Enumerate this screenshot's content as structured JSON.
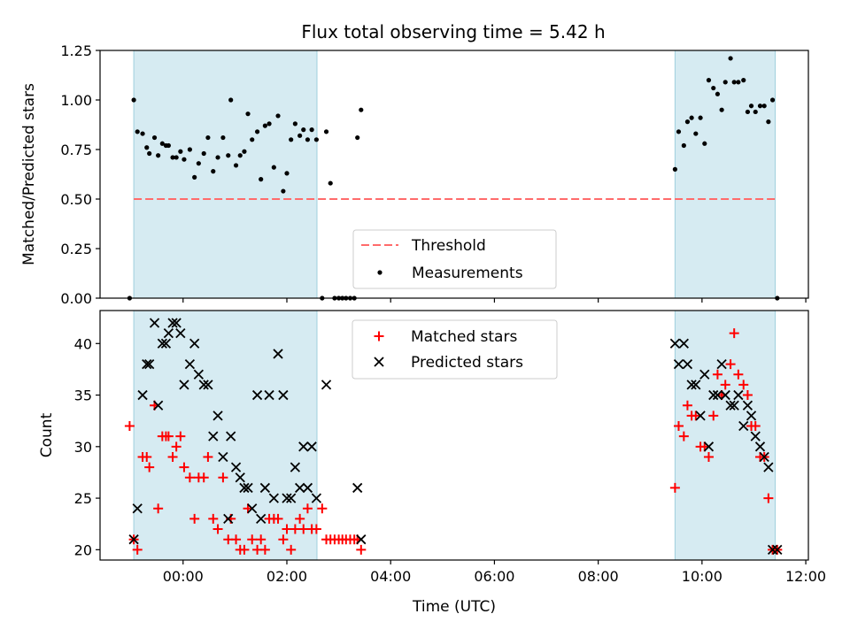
{
  "title": "Flux total observing time = 5.42 h",
  "chart_data": [
    {
      "type": "scatter",
      "ylabel": "Matched/Predicted stars",
      "xlabel": "",
      "xlim": [
        -1.6,
        12.05
      ],
      "ylim": [
        0,
        1.25
      ],
      "x_ticks": [
        0,
        2,
        4,
        6,
        8,
        10,
        12
      ],
      "y_ticks": [
        0.0,
        0.25,
        0.5,
        0.75,
        1.0,
        1.25
      ],
      "y_tick_labels": [
        "0.00",
        "0.25",
        "0.50",
        "0.75",
        "1.00",
        "1.25"
      ],
      "shaded_spans": [
        [
          -0.95,
          2.58
        ],
        [
          9.48,
          11.41
        ]
      ],
      "threshold": {
        "name": "Threshold",
        "value": 0.5,
        "x_range": [
          -0.95,
          11.41
        ],
        "color": "#ff6b6b"
      },
      "legend": {
        "placement": "lower center",
        "entries": [
          "Threshold",
          "Measurements"
        ]
      },
      "series": [
        {
          "name": "Measurements",
          "color": "#000000",
          "points": [
            [
              -1.03,
              0.0
            ],
            [
              -0.95,
              1.0
            ],
            [
              -0.88,
              0.84
            ],
            [
              -0.78,
              0.83
            ],
            [
              -0.7,
              0.76
            ],
            [
              -0.65,
              0.73
            ],
            [
              -0.55,
              0.81
            ],
            [
              -0.48,
              0.72
            ],
            [
              -0.4,
              0.78
            ],
            [
              -0.33,
              0.77
            ],
            [
              -0.28,
              0.77
            ],
            [
              -0.2,
              0.71
            ],
            [
              -0.13,
              0.71
            ],
            [
              -0.05,
              0.74
            ],
            [
              0.02,
              0.7
            ],
            [
              0.13,
              0.75
            ],
            [
              0.22,
              0.61
            ],
            [
              0.3,
              0.68
            ],
            [
              0.4,
              0.73
            ],
            [
              0.48,
              0.81
            ],
            [
              0.58,
              0.64
            ],
            [
              0.67,
              0.71
            ],
            [
              0.77,
              0.81
            ],
            [
              0.87,
              0.72
            ],
            [
              0.92,
              1.0
            ],
            [
              1.02,
              0.67
            ],
            [
              1.1,
              0.72
            ],
            [
              1.18,
              0.74
            ],
            [
              1.25,
              0.93
            ],
            [
              1.33,
              0.8
            ],
            [
              1.43,
              0.84
            ],
            [
              1.5,
              0.6
            ],
            [
              1.58,
              0.87
            ],
            [
              1.66,
              0.88
            ],
            [
              1.75,
              0.66
            ],
            [
              1.83,
              0.92
            ],
            [
              1.93,
              0.54
            ],
            [
              2.0,
              0.63
            ],
            [
              2.08,
              0.8
            ],
            [
              2.16,
              0.88
            ],
            [
              2.25,
              0.82
            ],
            [
              2.32,
              0.85
            ],
            [
              2.4,
              0.8
            ],
            [
              2.48,
              0.85
            ],
            [
              2.57,
              0.8
            ],
            [
              2.68,
              0.0
            ],
            [
              2.76,
              0.84
            ],
            [
              2.84,
              0.58
            ],
            [
              2.92,
              0.0
            ],
            [
              3.0,
              0.0
            ],
            [
              3.07,
              0.0
            ],
            [
              3.14,
              0.0
            ],
            [
              3.22,
              0.0
            ],
            [
              3.3,
              0.0
            ],
            [
              3.36,
              0.81
            ],
            [
              3.43,
              0.95
            ],
            [
              9.48,
              0.65
            ],
            [
              9.55,
              0.84
            ],
            [
              9.65,
              0.77
            ],
            [
              9.72,
              0.89
            ],
            [
              9.8,
              0.91
            ],
            [
              9.88,
              0.83
            ],
            [
              9.97,
              0.91
            ],
            [
              10.05,
              0.78
            ],
            [
              10.13,
              1.1
            ],
            [
              10.22,
              1.06
            ],
            [
              10.3,
              1.03
            ],
            [
              10.38,
              0.95
            ],
            [
              10.45,
              1.09
            ],
            [
              10.55,
              1.21
            ],
            [
              10.62,
              1.09
            ],
            [
              10.7,
              1.09
            ],
            [
              10.8,
              1.1
            ],
            [
              10.88,
              0.94
            ],
            [
              10.95,
              0.97
            ],
            [
              11.03,
              0.94
            ],
            [
              11.12,
              0.97
            ],
            [
              11.2,
              0.97
            ],
            [
              11.28,
              0.89
            ],
            [
              11.36,
              1.0
            ],
            [
              11.45,
              0.0
            ]
          ]
        }
      ]
    },
    {
      "type": "scatter",
      "ylabel": "Count",
      "xlabel": "Time (UTC)",
      "xlim": [
        -1.6,
        12.05
      ],
      "ylim": [
        19,
        43.2
      ],
      "x_ticks": [
        0,
        2,
        4,
        6,
        8,
        10,
        12
      ],
      "x_tick_labels": [
        "00:00",
        "02:00",
        "04:00",
        "06:00",
        "08:00",
        "10:00",
        "12:00"
      ],
      "y_ticks": [
        20,
        25,
        30,
        35,
        40
      ],
      "y_tick_labels": [
        "20",
        "25",
        "30",
        "35",
        "40"
      ],
      "shaded_spans": [
        [
          -0.95,
          2.58
        ],
        [
          9.48,
          11.41
        ]
      ],
      "legend": {
        "placement": "upper center",
        "entries": [
          "Matched stars",
          "Predicted stars"
        ]
      },
      "series": [
        {
          "name": "Matched stars",
          "marker": "plus",
          "color": "#ff0000",
          "points": [
            [
              -1.03,
              32
            ],
            [
              -0.95,
              21
            ],
            [
              -0.88,
              20
            ],
            [
              -0.78,
              29
            ],
            [
              -0.7,
              29
            ],
            [
              -0.65,
              28
            ],
            [
              -0.55,
              34
            ],
            [
              -0.48,
              24
            ],
            [
              -0.4,
              31
            ],
            [
              -0.33,
              31
            ],
            [
              -0.28,
              31
            ],
            [
              -0.2,
              29
            ],
            [
              -0.13,
              30
            ],
            [
              -0.05,
              31
            ],
            [
              0.02,
              28
            ],
            [
              0.13,
              27
            ],
            [
              0.22,
              23
            ],
            [
              0.3,
              27
            ],
            [
              0.4,
              27
            ],
            [
              0.48,
              29
            ],
            [
              0.58,
              23
            ],
            [
              0.67,
              22
            ],
            [
              0.77,
              27
            ],
            [
              0.87,
              21
            ],
            [
              0.92,
              23
            ],
            [
              1.02,
              21
            ],
            [
              1.1,
              20
            ],
            [
              1.18,
              20
            ],
            [
              1.25,
              24
            ],
            [
              1.33,
              21
            ],
            [
              1.43,
              20
            ],
            [
              1.5,
              21
            ],
            [
              1.58,
              20
            ],
            [
              1.66,
              23
            ],
            [
              1.75,
              23
            ],
            [
              1.83,
              23
            ],
            [
              1.93,
              21
            ],
            [
              2.0,
              22
            ],
            [
              2.08,
              20
            ],
            [
              2.16,
              22
            ],
            [
              2.25,
              23
            ],
            [
              2.32,
              22
            ],
            [
              2.4,
              24
            ],
            [
              2.48,
              22
            ],
            [
              2.57,
              22
            ],
            [
              2.68,
              24
            ],
            [
              2.76,
              21
            ],
            [
              2.84,
              21
            ],
            [
              2.92,
              21
            ],
            [
              3.0,
              21
            ],
            [
              3.07,
              21
            ],
            [
              3.14,
              21
            ],
            [
              3.22,
              21
            ],
            [
              3.3,
              21
            ],
            [
              3.36,
              21
            ],
            [
              3.43,
              20
            ],
            [
              9.48,
              26
            ],
            [
              9.55,
              32
            ],
            [
              9.65,
              31
            ],
            [
              9.72,
              34
            ],
            [
              9.8,
              33
            ],
            [
              9.88,
              33
            ],
            [
              9.97,
              30
            ],
            [
              10.05,
              30
            ],
            [
              10.13,
              29
            ],
            [
              10.22,
              33
            ],
            [
              10.3,
              37
            ],
            [
              10.38,
              35
            ],
            [
              10.45,
              36
            ],
            [
              10.55,
              38
            ],
            [
              10.62,
              41
            ],
            [
              10.7,
              37
            ],
            [
              10.8,
              36
            ],
            [
              10.88,
              35
            ],
            [
              10.95,
              32
            ],
            [
              11.03,
              32
            ],
            [
              11.12,
              29
            ],
            [
              11.2,
              29
            ],
            [
              11.28,
              25
            ],
            [
              11.36,
              20
            ],
            [
              11.45,
              20
            ]
          ]
        },
        {
          "name": "Predicted stars",
          "marker": "x",
          "color": "#000000",
          "points": [
            [
              -0.95,
              21
            ],
            [
              -0.88,
              24
            ],
            [
              -0.78,
              35
            ],
            [
              -0.7,
              38
            ],
            [
              -0.65,
              38
            ],
            [
              -0.55,
              42
            ],
            [
              -0.48,
              34
            ],
            [
              -0.4,
              40
            ],
            [
              -0.33,
              40
            ],
            [
              -0.28,
              41
            ],
            [
              -0.2,
              42
            ],
            [
              -0.13,
              42
            ],
            [
              -0.05,
              41
            ],
            [
              0.02,
              36
            ],
            [
              0.13,
              38
            ],
            [
              0.22,
              40
            ],
            [
              0.3,
              37
            ],
            [
              0.4,
              36
            ],
            [
              0.48,
              36
            ],
            [
              0.58,
              31
            ],
            [
              0.67,
              33
            ],
            [
              0.77,
              29
            ],
            [
              0.87,
              23
            ],
            [
              0.92,
              31
            ],
            [
              1.02,
              28
            ],
            [
              1.1,
              27
            ],
            [
              1.18,
              26
            ],
            [
              1.25,
              26
            ],
            [
              1.33,
              24
            ],
            [
              1.43,
              35
            ],
            [
              1.5,
              23
            ],
            [
              1.58,
              26
            ],
            [
              1.66,
              35
            ],
            [
              1.75,
              25
            ],
            [
              1.83,
              39
            ],
            [
              1.93,
              35
            ],
            [
              2.0,
              25
            ],
            [
              2.08,
              25
            ],
            [
              2.16,
              28
            ],
            [
              2.25,
              26
            ],
            [
              2.32,
              30
            ],
            [
              2.4,
              26
            ],
            [
              2.48,
              30
            ],
            [
              2.57,
              25
            ],
            [
              2.76,
              36
            ],
            [
              3.36,
              26
            ],
            [
              3.43,
              21
            ],
            [
              9.48,
              40
            ],
            [
              9.55,
              38
            ],
            [
              9.65,
              40
            ],
            [
              9.72,
              38
            ],
            [
              9.8,
              36
            ],
            [
              9.88,
              36
            ],
            [
              9.97,
              33
            ],
            [
              10.05,
              37
            ],
            [
              10.13,
              30
            ],
            [
              10.22,
              35
            ],
            [
              10.3,
              35
            ],
            [
              10.38,
              38
            ],
            [
              10.45,
              35
            ],
            [
              10.55,
              34
            ],
            [
              10.62,
              34
            ],
            [
              10.7,
              35
            ],
            [
              10.8,
              32
            ],
            [
              10.88,
              34
            ],
            [
              10.95,
              33
            ],
            [
              11.03,
              31
            ],
            [
              11.12,
              30
            ],
            [
              11.2,
              29
            ],
            [
              11.28,
              28
            ],
            [
              11.36,
              20
            ],
            [
              11.45,
              20
            ]
          ]
        }
      ]
    }
  ]
}
